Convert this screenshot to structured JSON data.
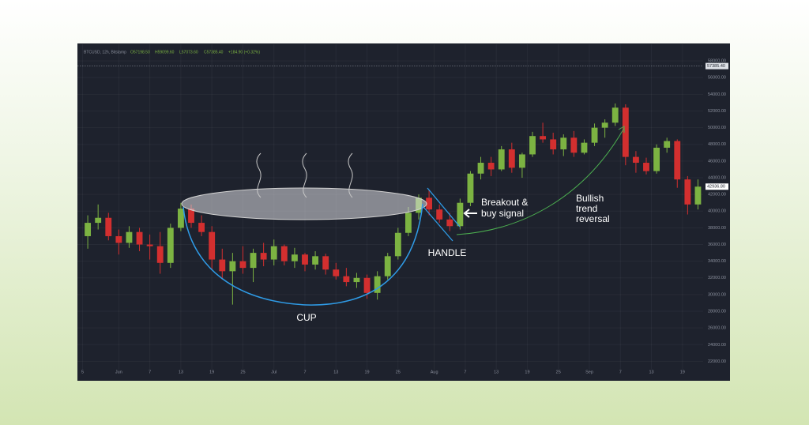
{
  "chart_data": {
    "type": "candlestick",
    "title": "BTCUSD, 12h, Bitstamp",
    "ohlc_header": [
      "O57198.50",
      "H59099.60",
      "L57073.60",
      "C57385.40",
      "+184.90 (+0.32%)"
    ],
    "up_color": "#7cb342",
    "down_color": "#d32f2f",
    "grid": true,
    "x": [
      -6,
      -4,
      -2,
      0,
      2,
      4,
      6,
      8,
      10,
      12,
      14,
      16,
      18,
      20,
      22,
      24,
      26,
      28,
      30,
      32,
      34,
      36,
      38,
      40,
      42,
      44,
      46,
      48,
      50,
      52,
      54,
      56,
      58,
      60,
      62,
      64,
      66,
      68,
      70,
      72,
      74,
      76,
      78,
      80,
      82,
      84,
      86,
      88,
      90,
      92,
      94,
      96,
      98,
      100,
      102,
      104,
      106,
      108,
      110,
      112
    ],
    "open": [
      37000,
      38600,
      39200,
      37000,
      36200,
      37500,
      36000,
      35800,
      33800,
      38000,
      40300,
      38600,
      37500,
      34200,
      32800,
      34000,
      33200,
      35000,
      34200,
      35800,
      34000,
      34800,
      33600,
      34600,
      33000,
      32200,
      31500,
      32000,
      30200,
      32200,
      34600,
      37400,
      39800,
      41600,
      40200,
      39000,
      38200,
      41000,
      44500,
      45800,
      45000,
      47400,
      45200,
      46800,
      49000,
      48600,
      47400,
      48800,
      47000,
      48200,
      50000,
      50600,
      52400,
      46500,
      45800,
      44800,
      47600,
      48400,
      43800,
      40800
    ],
    "high": [
      39500,
      40800,
      39800,
      37800,
      38200,
      38000,
      37200,
      37500,
      38500,
      41000,
      40800,
      39500,
      38200,
      35500,
      35000,
      35800,
      35500,
      36200,
      36600,
      36000,
      35600,
      35000,
      35200,
      34900,
      33800,
      33200,
      32600,
      32400,
      32800,
      35000,
      38000,
      40500,
      42000,
      42500,
      40800,
      39800,
      41500,
      44800,
      46500,
      46500,
      47800,
      48200,
      47000,
      49500,
      50600,
      49400,
      49200,
      49600,
      48600,
      50500,
      51000,
      52900,
      52800,
      47200,
      46400,
      48000,
      48800,
      48600,
      44200,
      43800
    ],
    "low": [
      35500,
      37800,
      36500,
      34800,
      35600,
      35200,
      34200,
      32500,
      33200,
      37600,
      38000,
      37000,
      33000,
      31800,
      28800,
      32500,
      31500,
      33400,
      33500,
      33500,
      33200,
      32800,
      33000,
      32400,
      31800,
      31000,
      30800,
      29500,
      29400,
      31800,
      34200,
      37000,
      39000,
      39500,
      38600,
      37600,
      37800,
      40600,
      43800,
      44200,
      44800,
      44600,
      44000,
      46500,
      48200,
      46800,
      46600,
      46500,
      46800,
      47800,
      48800,
      50200,
      45500,
      44600,
      44400,
      44500,
      47000,
      42800,
      39600,
      40200
    ],
    "close": [
      38600,
      39200,
      37000,
      36200,
      37500,
      36000,
      35800,
      33800,
      38000,
      40300,
      38600,
      37500,
      34200,
      32800,
      34000,
      33200,
      35000,
      34200,
      35800,
      34000,
      34800,
      33600,
      34600,
      33000,
      32200,
      31500,
      32000,
      30200,
      32200,
      34600,
      37400,
      39800,
      41600,
      40200,
      39000,
      38200,
      41000,
      44500,
      45800,
      45000,
      47400,
      45200,
      46800,
      49000,
      48600,
      47400,
      48800,
      47000,
      48200,
      50000,
      50600,
      52400,
      46500,
      45800,
      44800,
      47600,
      48400,
      43800,
      40800,
      42936
    ],
    "xlim": [
      -8,
      113
    ],
    "ylim": [
      21000,
      60000
    ],
    "xticks": [
      {
        "value": -7,
        "label": "5"
      },
      {
        "value": 0,
        "label": "Jun"
      },
      {
        "value": 6,
        "label": "7"
      },
      {
        "value": 12,
        "label": "13"
      },
      {
        "value": 18,
        "label": "19"
      },
      {
        "value": 24,
        "label": "25"
      },
      {
        "value": 30,
        "label": "Jul"
      },
      {
        "value": 36,
        "label": "7"
      },
      {
        "value": 42,
        "label": "13"
      },
      {
        "value": 48,
        "label": "19"
      },
      {
        "value": 54,
        "label": "25"
      },
      {
        "value": 61,
        "label": "Aug"
      },
      {
        "value": 67,
        "label": "7"
      },
      {
        "value": 73,
        "label": "13"
      },
      {
        "value": 79,
        "label": "19"
      },
      {
        "value": 85,
        "label": "25"
      },
      {
        "value": 91,
        "label": "Sep"
      },
      {
        "value": 97,
        "label": "7"
      },
      {
        "value": 103,
        "label": "13"
      },
      {
        "value": 109,
        "label": "19"
      }
    ],
    "yticks": [
      {
        "value": 22000,
        "label": "22000.00"
      },
      {
        "value": 24000,
        "label": "24000.00"
      },
      {
        "value": 26000,
        "label": "26000.00"
      },
      {
        "value": 28000,
        "label": "28000.00"
      },
      {
        "value": 30000,
        "label": "30000.00"
      },
      {
        "value": 32000,
        "label": "32000.00"
      },
      {
        "value": 34000,
        "label": "34000.00"
      },
      {
        "value": 36000,
        "label": "36000.00"
      },
      {
        "value": 38000,
        "label": "38000.00"
      },
      {
        "value": 40000,
        "label": "40000.00"
      },
      {
        "value": 42000,
        "label": "42000.00"
      },
      {
        "value": 44000,
        "label": "44000.00"
      },
      {
        "value": 46000,
        "label": "46000.00"
      },
      {
        "value": 48000,
        "label": "48000.00"
      },
      {
        "value": 50000,
        "label": "50000.00"
      },
      {
        "value": 52000,
        "label": "52000.00"
      },
      {
        "value": 54000,
        "label": "54000.00"
      },
      {
        "value": 56000,
        "label": "56000.00"
      },
      {
        "value": 58000,
        "label": "58000.00"
      }
    ],
    "price_line": {
      "value": 57385.4,
      "label": "57385.40"
    },
    "last_price": {
      "value": 42936.8,
      "label": "42936.80"
    },
    "annotations": {
      "cup": "CUP",
      "handle": "HANDLE",
      "breakout": [
        "Breakout &",
        "buy signal"
      ],
      "reversal": [
        "Bullish",
        "trend",
        "reversal"
      ]
    }
  }
}
